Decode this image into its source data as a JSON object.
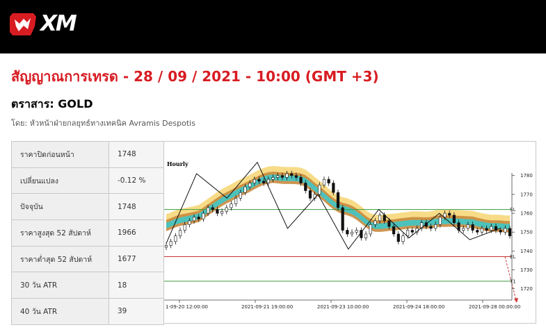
{
  "brand": {
    "logo_text": "XM",
    "colors": {
      "header_bg": "#000000",
      "accent": "#d71c22"
    }
  },
  "page": {
    "title": "สัญญาณการเทรด - 28 / 09 / 2021 - 10:00 (GMT +3)",
    "instrument": "ตราสาร: GOLD",
    "author": "โดย: หัวหน้าฝ่ายกลยุทธ์ทางเทคนิค Avramis Despotis"
  },
  "stats": [
    {
      "label": "ราคาปิดก่อนหน้า",
      "value": "1748"
    },
    {
      "label": "เปลี่ยนแปลง",
      "value": "-0.12 %"
    },
    {
      "label": "ปัจจุบัน",
      "value": "1748"
    },
    {
      "label": "ราคาสูงสุด 52 สัปดาห์",
      "value": "1966"
    },
    {
      "label": "ราคาต่ำสุด 52 สัปดาห์",
      "value": "1677"
    },
    {
      "label": "30 วัน ATR",
      "value": "18"
    },
    {
      "label": "40 วัน ATR",
      "value": "39"
    }
  ],
  "chart_data": {
    "type": "candlestick",
    "timeframe": "Hourly",
    "y_ticks": [
      1780,
      1770,
      1760,
      1750,
      1740,
      1730,
      1720
    ],
    "ylim": [
      1714,
      1795
    ],
    "x_ticks": [
      "1-09-20 12:00:00",
      "2021-09-21 19:00:00",
      "2021-09-23 10:00:00",
      "2021-09-24 18:00:00",
      "2021-09-28 00:00:00"
    ],
    "levels": [
      {
        "name": "SL",
        "value": 1762,
        "color": "#3a9a3a"
      },
      {
        "name": "EL",
        "value": 1737,
        "color": "#cc3333"
      },
      {
        "name": "",
        "value": 1724,
        "color": "#3a9a3a"
      }
    ],
    "target_label": "T1",
    "zigzag": [
      1744,
      1781,
      1768,
      1787,
      1752,
      1770,
      1741,
      1762,
      1747,
      1760,
      1746,
      1752
    ],
    "closes": [
      1743,
      1745,
      1748,
      1751,
      1754,
      1756,
      1758,
      1757,
      1760,
      1763,
      1762,
      1760,
      1761,
      1763,
      1765,
      1768,
      1771,
      1774,
      1776,
      1778,
      1777,
      1776,
      1778,
      1779,
      1780,
      1779,
      1781,
      1780,
      1779,
      1776,
      1772,
      1768,
      1770,
      1775,
      1778,
      1776,
      1771,
      1763,
      1751,
      1749,
      1750,
      1751,
      1747,
      1749,
      1754,
      1756,
      1759,
      1756,
      1753,
      1749,
      1745,
      1748,
      1751,
      1750,
      1752,
      1755,
      1753,
      1752,
      1754,
      1758,
      1760,
      1759,
      1755,
      1751,
      1752,
      1754,
      1751,
      1750,
      1752,
      1751,
      1753,
      1751,
      1750,
      1752,
      1748
    ]
  }
}
